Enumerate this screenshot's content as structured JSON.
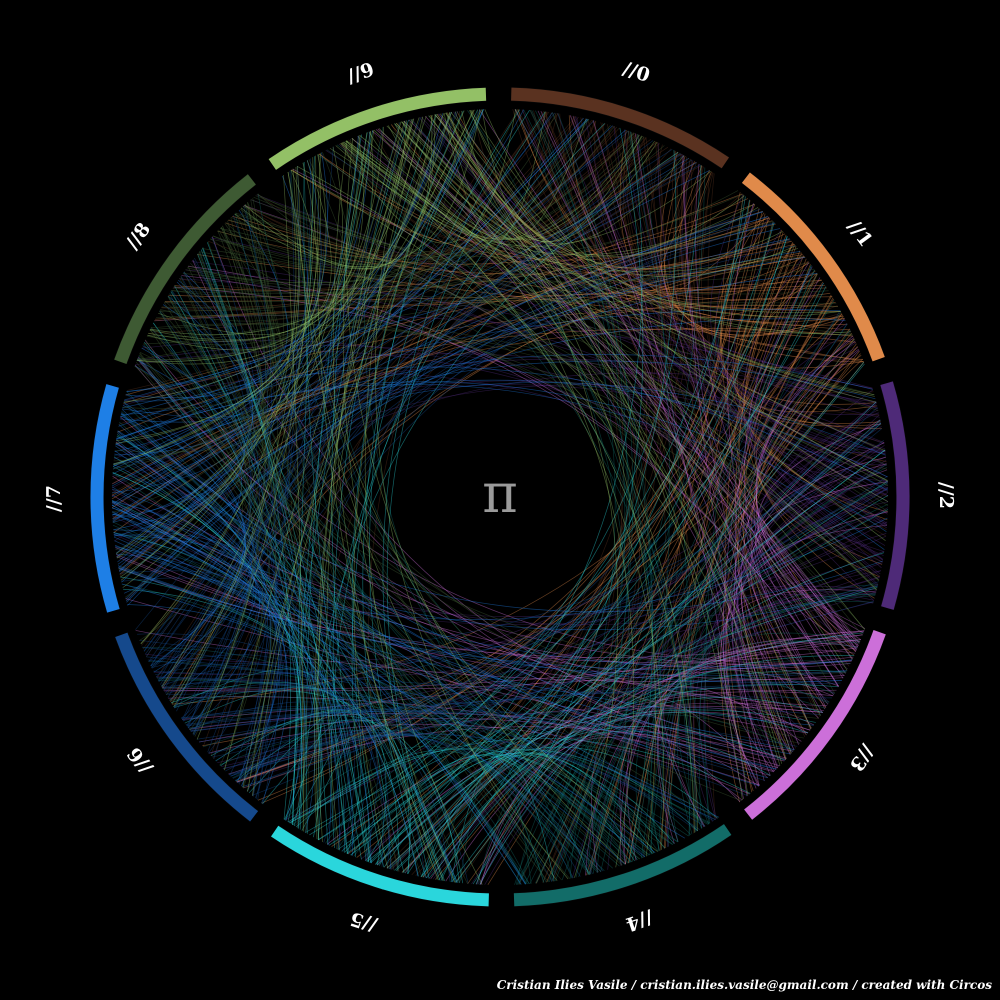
{
  "diagram": {
    "center_symbol": "π",
    "credit": "Cristian Ilies Vasile / cristian.ilies.vasile@gmail.com / created with Circos",
    "segments": [
      {
        "label": "//0",
        "color": "#5a3220"
      },
      {
        "label": "//1",
        "color": "#e08a4a"
      },
      {
        "label": "//2",
        "color": "#4e2a78"
      },
      {
        "label": "//3",
        "color": "#cc6fd9"
      },
      {
        "label": "//4",
        "color": "#126c68"
      },
      {
        "label": "//5",
        "color": "#2ad6dc"
      },
      {
        "label": "//6",
        "color": "#15498c"
      },
      {
        "label": "//7",
        "color": "#1e7fe6"
      },
      {
        "label": "//8",
        "color": "#3e5a33"
      },
      {
        "label": "//9",
        "color": "#93c066"
      }
    ]
  }
}
